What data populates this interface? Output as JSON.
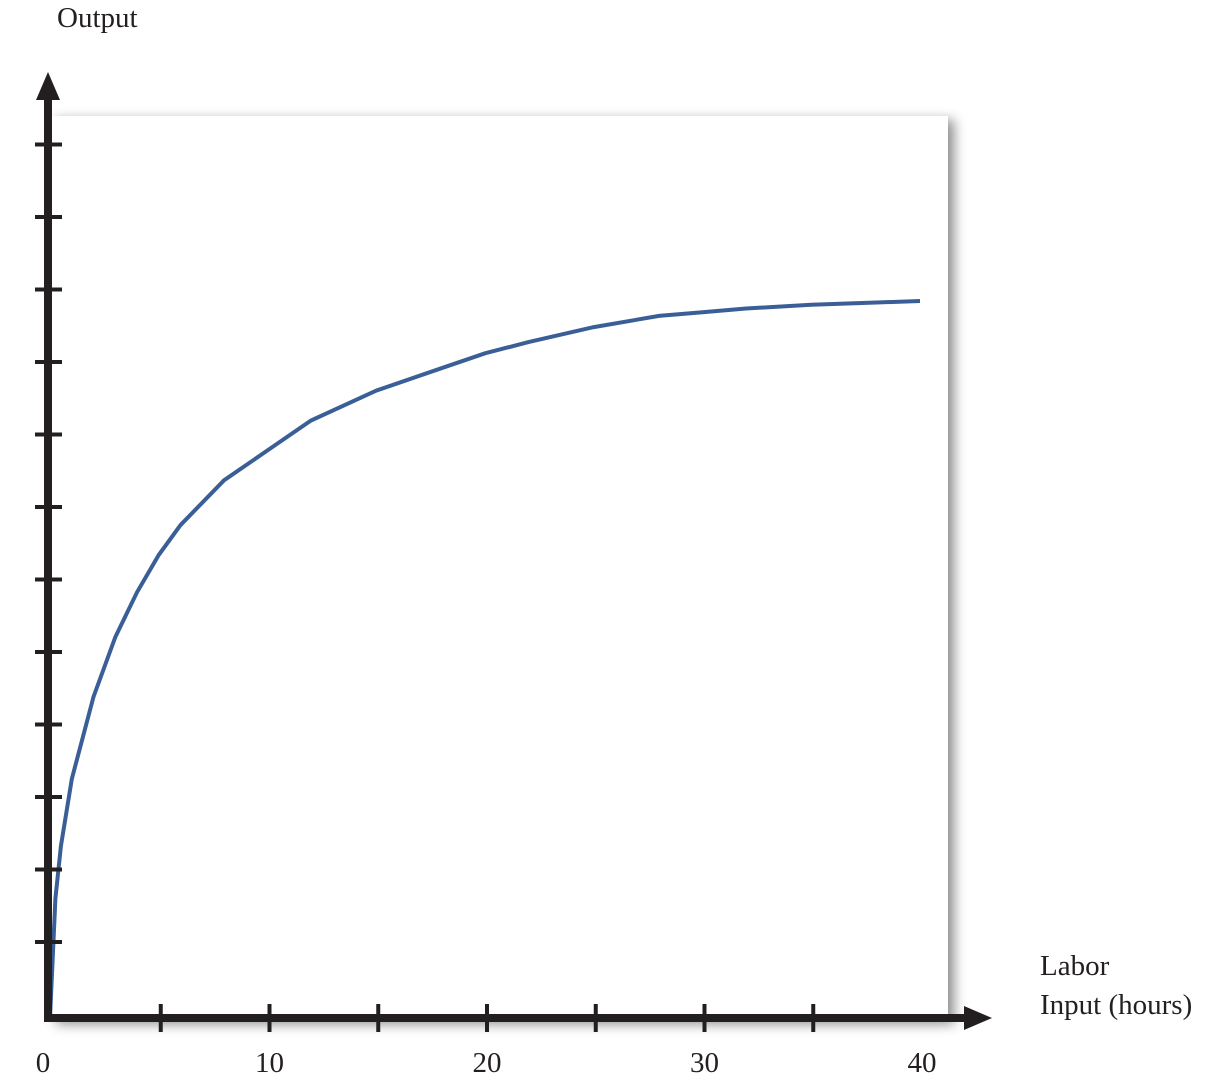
{
  "chart_data": {
    "type": "line",
    "title": "",
    "xlabel_line1": "Labor",
    "xlabel_line2": "Input (hours)",
    "ylabel": "Output",
    "xlim": [
      0,
      40
    ],
    "x_ticks_minor": [
      5,
      10,
      15,
      20,
      25,
      30,
      35
    ],
    "x_tick_labels": [
      "0",
      "10",
      "20",
      "30",
      "40"
    ],
    "x_tick_label_values": [
      0,
      10,
      20,
      30,
      40
    ],
    "y_tick_count": 12,
    "y_tick_labels": [],
    "grid": false,
    "legend": "none",
    "series": [
      {
        "color": "#3a5f96",
        "x": [
          0,
          0.25,
          0.5,
          1,
          2,
          3,
          4,
          5,
          6,
          8,
          10,
          12,
          15,
          18,
          20,
          22,
          25,
          28,
          30,
          32,
          35,
          38,
          40
        ],
        "y": [
          0,
          0.16,
          0.23,
          0.32,
          0.43,
          0.51,
          0.57,
          0.62,
          0.66,
          0.72,
          0.76,
          0.8,
          0.84,
          0.87,
          0.89,
          0.905,
          0.925,
          0.94,
          0.945,
          0.95,
          0.955,
          0.958,
          0.96
        ]
      }
    ],
    "colors": {
      "axis": "#231f20",
      "curve": "#3a5f96",
      "panel": "#ffffff",
      "panel_shadow": "#8a8a8a"
    }
  }
}
